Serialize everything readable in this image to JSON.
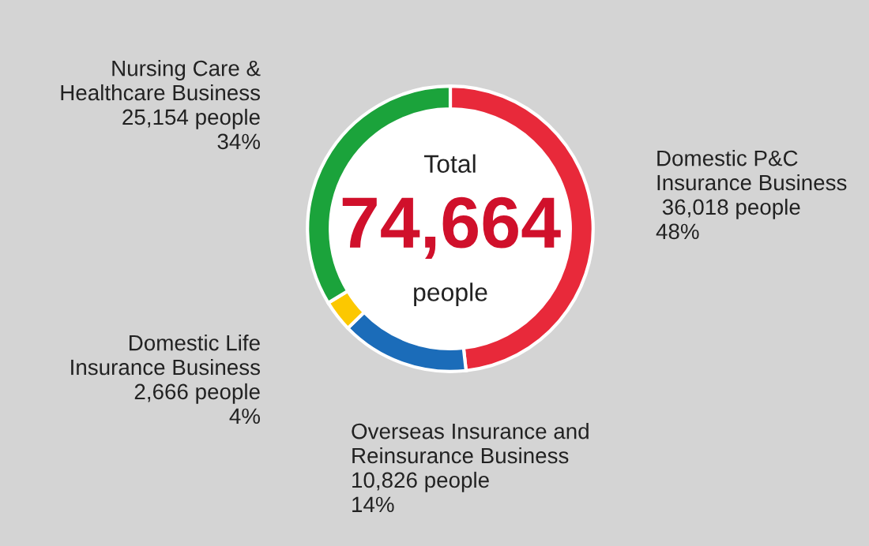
{
  "chart_data": {
    "type": "donut",
    "categories": [
      "Domestic P&C\nInsurance Business",
      "Overseas Insurance and\nReinsurance Business",
      "Domestic Life\nInsurance Business",
      "Nursing Care &\nHealthcare Business"
    ],
    "values": [
      36018,
      10826,
      2666,
      25154
    ],
    "colors": [
      "#e8293a",
      "#1b6cb9",
      "#fcc800",
      "#1ba33b"
    ],
    "value_labels": [
      " 36,018 people\n48%",
      "10,826 people\n14%",
      "2,666 people\n4%",
      "25,154 people\n34%"
    ],
    "annotations": [
      "Total",
      "74,664",
      "people"
    ],
    "legend": false
  }
}
